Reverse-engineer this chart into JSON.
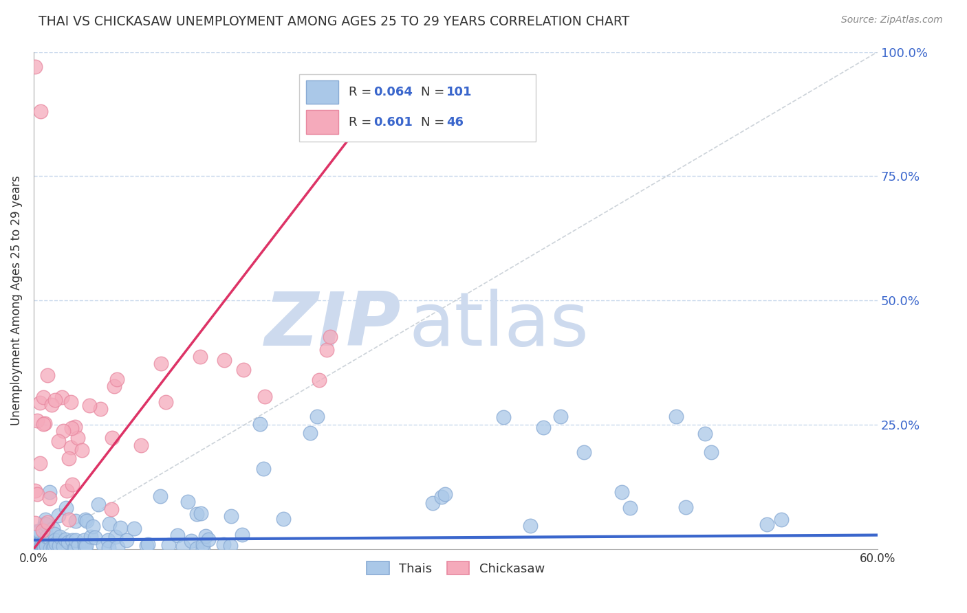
{
  "title": "THAI VS CHICKASAW UNEMPLOYMENT AMONG AGES 25 TO 29 YEARS CORRELATION CHART",
  "source": "Source: ZipAtlas.com",
  "ylabel": "Unemployment Among Ages 25 to 29 years",
  "xlim": [
    0.0,
    0.6
  ],
  "ylim": [
    0.0,
    1.0
  ],
  "thai_R": "0.064",
  "thai_N": "101",
  "chickasaw_R": "0.601",
  "chickasaw_N": "46",
  "thai_color": "#aac8e8",
  "thai_edge_color": "#88aad4",
  "chickasaw_color": "#f5aabb",
  "chickasaw_edge_color": "#e888a0",
  "thai_line_color": "#3a66cc",
  "chickasaw_line_color": "#dd3366",
  "ref_line_color": "#c0c8d0",
  "watermark_zip_color": "#cddaee",
  "watermark_atlas_color": "#cddaee",
  "legend_label_thai": "Thais",
  "legend_label_chickasaw": "Chickasaw",
  "r_n_color": "#3a66cc",
  "background_color": "#ffffff",
  "grid_color": "#c8d8ec",
  "title_color": "#333333",
  "axis_color": "#aaaaaa",
  "tick_label_color": "#3a66cc",
  "ytick_vals": [
    0.25,
    0.5,
    0.75,
    1.0
  ],
  "ytick_labels": [
    "25.0%",
    "50.0%",
    "75.0%",
    "100.0%"
  ]
}
